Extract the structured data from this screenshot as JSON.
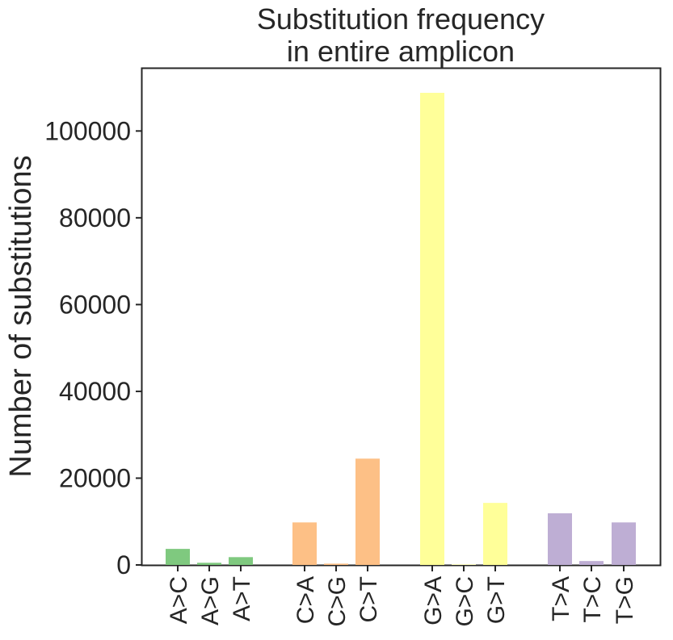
{
  "chart_data": {
    "type": "bar",
    "title_lines": [
      "Substitution frequency",
      "in entire amplicon"
    ],
    "xlabel": "",
    "ylabel": "Number of substitutions",
    "categories": [
      "A>C",
      "A>G",
      "A>T",
      "C>A",
      "C>G",
      "C>T",
      "G>A",
      "G>C",
      "G>T",
      "T>A",
      "T>C",
      "T>G"
    ],
    "values": [
      3700,
      500,
      1800,
      9800,
      300,
      24500,
      108800,
      100,
      14300,
      11900,
      900,
      9800
    ],
    "groups": [
      {
        "bases": "A",
        "color": "#7fc97f"
      },
      {
        "bases": "C",
        "color": "#fdc086"
      },
      {
        "bases": "G",
        "color": "#ffff99"
      },
      {
        "bases": "T",
        "color": "#beaed4"
      }
    ],
    "yticks": [
      "0",
      "20000",
      "40000",
      "60000",
      "80000",
      "100000"
    ],
    "ylim": [
      0,
      114000
    ],
    "grid": false,
    "legend": "none"
  }
}
